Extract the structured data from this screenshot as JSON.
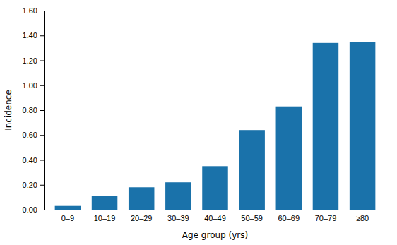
{
  "chart_data": {
    "type": "bar",
    "categories": [
      "0–9",
      "10–19",
      "20–29",
      "30–39",
      "40–49",
      "50–59",
      "60–69",
      "70–79",
      "≥80"
    ],
    "values": [
      0.03,
      0.11,
      0.18,
      0.22,
      0.35,
      0.64,
      0.83,
      1.34,
      1.35
    ],
    "color": "#1a72aa",
    "xlabel": "Age group (yrs)",
    "ylabel": "Incidence",
    "ylim": [
      0,
      1.6
    ],
    "yticks": [
      {
        "value": 0.0,
        "label": "0.00"
      },
      {
        "value": 0.2,
        "label": "0.20"
      },
      {
        "value": 0.4,
        "label": "0.40"
      },
      {
        "value": 0.6,
        "label": "0.60"
      },
      {
        "value": 0.8,
        "label": "0.80"
      },
      {
        "value": 1.0,
        "label": "1.00"
      },
      {
        "value": 1.2,
        "label": "1.20"
      },
      {
        "value": 1.4,
        "label": "1.40"
      },
      {
        "value": 1.6,
        "label": "1.60"
      }
    ],
    "grid": false
  }
}
